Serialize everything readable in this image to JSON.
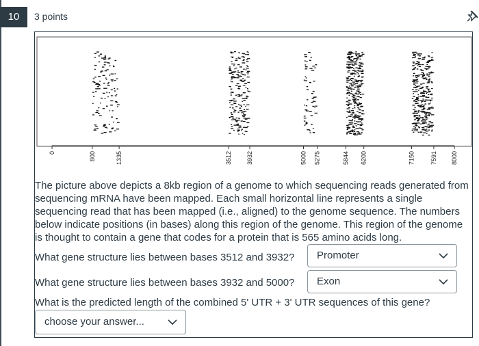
{
  "question": {
    "number": "10",
    "points": "3 points"
  },
  "figure": {
    "positions": [
      "0",
      "800",
      "1335",
      "3512",
      "3932",
      "5000",
      "5275",
      "5844",
      "6200",
      "7150",
      "7591",
      "8000"
    ],
    "read_clusters": [
      {
        "start": 800,
        "end": 1335,
        "density": "low"
      },
      {
        "start": 3512,
        "end": 3932,
        "density": "medium"
      },
      {
        "start": 5000,
        "end": 5275,
        "density": "sparse"
      },
      {
        "start": 5844,
        "end": 6200,
        "density": "high"
      },
      {
        "start": 7150,
        "end": 7591,
        "density": "high"
      }
    ]
  },
  "description": "The picture above depicts a 8kb region of a genome to which sequencing reads generated from sequencing mRNA have been mapped. Each small horizontal line represents a single sequencing read that has been mapped (i.e., aligned) to the genome sequence. The numbers below indicate positions (in bases) along this region of the genome. This region of the genome is thought to contain a gene that codes for a protein that is 565 amino acids long.",
  "q1": {
    "text": "What gene structure lies between bases 3512 and 3932?",
    "selected": "Promoter"
  },
  "q2": {
    "text": "What gene structure lies between bases 3932 and 5000?",
    "selected": "Exon"
  },
  "q3": {
    "text": "What is the predicted length of the combined 5' UTR + 3' UTR sequences of this gene?",
    "selected": "choose your answer..."
  },
  "icons": {
    "pin": "pin-icon",
    "dropdown": "chevron-down-icon"
  }
}
